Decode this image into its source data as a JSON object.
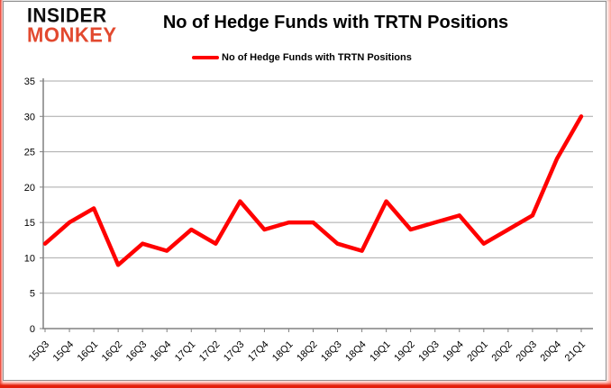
{
  "logo": {
    "line1": "INSIDER",
    "line2": "MONKEY"
  },
  "header": {
    "title": "No of Hedge Funds with TRTN Positions"
  },
  "legend": {
    "label": "No of Hedge Funds with TRTN Positions"
  },
  "colors": {
    "series": "#ff0000",
    "logo_red": "#e2492f",
    "axis": "#808080",
    "grid": "#a9a9a9",
    "text": "#000000"
  },
  "chart_data": {
    "type": "line",
    "title": "No of Hedge Funds with TRTN Positions",
    "xlabel": "",
    "ylabel": "",
    "categories": [
      "15Q3",
      "15Q4",
      "16Q1",
      "16Q2",
      "16Q3",
      "16Q4",
      "17Q1",
      "17Q2",
      "17Q3",
      "17Q4",
      "18Q1",
      "18Q2",
      "18Q3",
      "18Q4",
      "19Q1",
      "19Q2",
      "19Q3",
      "19Q4",
      "20Q1",
      "20Q2",
      "20Q3",
      "20Q4",
      "21Q1"
    ],
    "series": [
      {
        "name": "No of Hedge Funds with TRTN Positions",
        "color": "#ff0000",
        "values": [
          12,
          15,
          17,
          9,
          12,
          11,
          14,
          12,
          18,
          14,
          15,
          15,
          12,
          11,
          18,
          14,
          15,
          16,
          12,
          14,
          16,
          24,
          30
        ]
      }
    ],
    "ylim": [
      0,
      35
    ],
    "yticks": [
      0,
      5,
      10,
      15,
      20,
      25,
      30,
      35
    ],
    "grid": true,
    "legend_position": "top-center"
  }
}
